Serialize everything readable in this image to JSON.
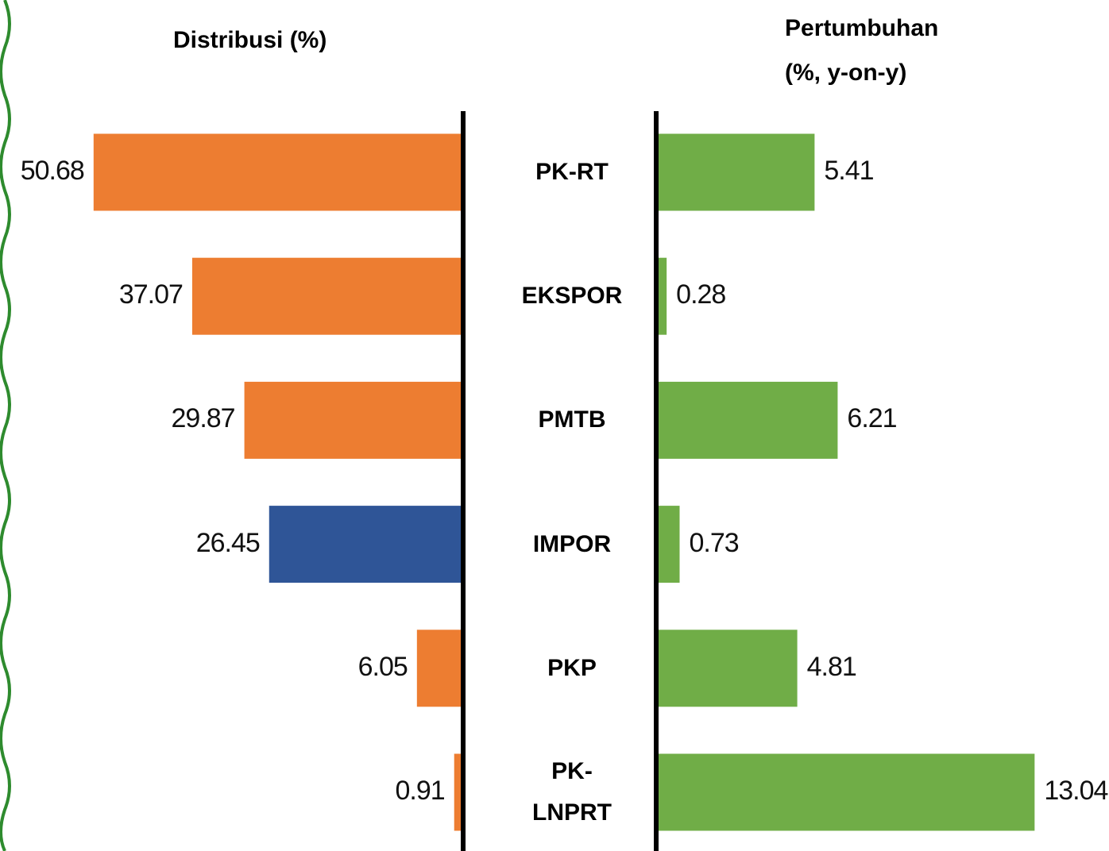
{
  "chart_data": {
    "type": "bar",
    "categories": [
      "PK-RT",
      "EKSPOR",
      "PMTB",
      "IMPOR",
      "PKP",
      "PK-LNPRT"
    ],
    "series": [
      {
        "name": "Distribusi (%)",
        "colors": [
          "#ed7d31",
          "#ed7d31",
          "#ed7d31",
          "#2f5597",
          "#ed7d31",
          "#ed7d31"
        ],
        "values": [
          50.68,
          37.07,
          29.87,
          26.45,
          6.05,
          0.91
        ]
      },
      {
        "name": "Pertumbuhan (%, y-on-y)",
        "colors": [
          "#70ad47",
          "#70ad47",
          "#70ad47",
          "#70ad47",
          "#70ad47",
          "#70ad47"
        ],
        "values": [
          5.41,
          0.28,
          6.21,
          0.73,
          4.81,
          13.04
        ]
      }
    ]
  }
}
